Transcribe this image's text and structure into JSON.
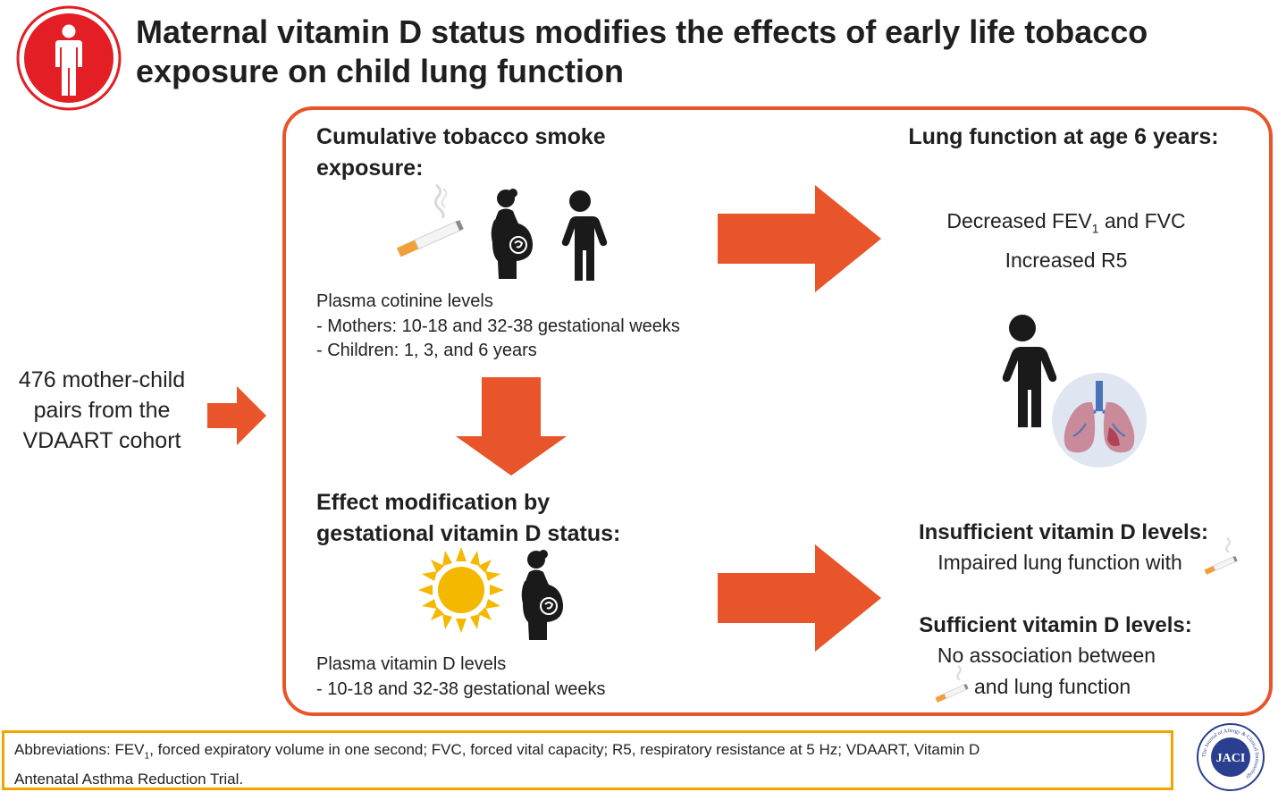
{
  "title": {
    "line1": "Maternal vitamin D status modifies the effects of early life tobacco",
    "line2": "exposure on child lung function"
  },
  "left": {
    "lines": [
      "476 mother-child",
      "pairs from the",
      "VDAART cohort"
    ]
  },
  "exposure": {
    "heading_line1": "Cumulative tobacco smoke",
    "heading_line2": "exposure:",
    "lines": [
      "Plasma cotinine levels",
      "- Mothers: 10-18 and 32-38 gestational weeks",
      "- Children: 1, 3, and 6 years"
    ]
  },
  "modification": {
    "heading_line1": "Effect modification by",
    "heading_line2": "gestational vitamin D status:",
    "lines": [
      "Plasma vitamin D levels",
      "- 10-18 and 32-38 gestational weeks"
    ]
  },
  "outcome": {
    "heading": "Lung function at age 6 years:",
    "decreased_prefix": "Decreased FEV",
    "decreased_sub": "1",
    "decreased_suffix": " and FVC",
    "increased": "Increased R5"
  },
  "insufficient": {
    "heading": "Insufficient vitamin D levels:",
    "text": "Impaired lung function with"
  },
  "sufficient": {
    "heading": "Sufficient vitamin D levels:",
    "line1": "No association between",
    "line2": "and lung function"
  },
  "abbreviations": {
    "prefix": "Abbreviations: FEV",
    "sub": "1",
    "rest": ", forced expiratory volume in one second; FVC, forced vital capacity; R5, respiratory resistance at 5 Hz; VDAART, Vitamin D",
    "line2": "Antenatal Asthma Reduction Trial."
  },
  "logo": {
    "text": "JACI",
    "ring_text": "The Journal of Allergy & Clinical Immunology"
  },
  "colors": {
    "accent": "#e8552a",
    "abbr_border": "#f0a500",
    "header_icon": "#e31e24",
    "sun": "#f5b800"
  },
  "icons": {
    "header": "person-icon",
    "cigarette": "cigarette-icon",
    "pregnant": "pregnant-woman-icon",
    "child": "child-icon",
    "sun": "sun-icon",
    "lungs": "lungs-icon"
  }
}
